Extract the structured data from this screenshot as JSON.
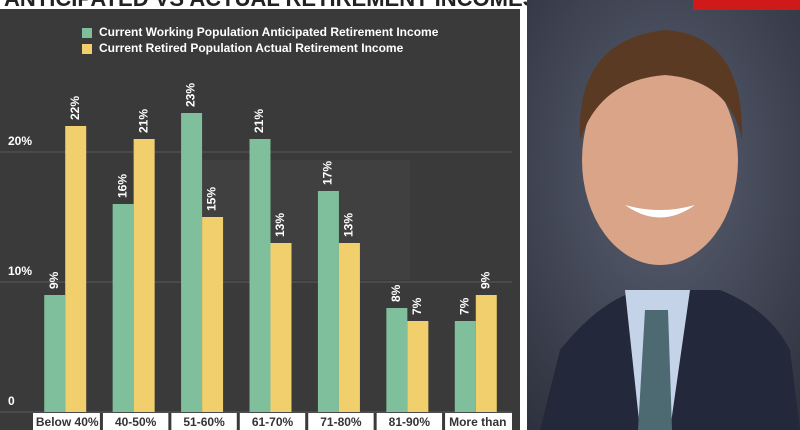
{
  "chart_data": {
    "type": "bar",
    "title": "ANTICIPATED VS ACTUAL RETIREMENT INCOMES",
    "categories": [
      "Below 40%",
      "40-50%",
      "51-60%",
      "61-70%",
      "71-80%",
      "81-90%",
      "More than"
    ],
    "series": [
      {
        "name": "Current Working Population Anticipated Retirement Income",
        "color": "#7fbf9b",
        "values": [
          9,
          16,
          23,
          21,
          17,
          8,
          7
        ],
        "value_labels": [
          "9%",
          "16%",
          "23%",
          "21%",
          "17%",
          "8%",
          "7%"
        ]
      },
      {
        "name": "Current Retired Population Actual Retirement Income",
        "color": "#f0cf6c",
        "values": [
          22,
          21,
          15,
          13,
          13,
          7,
          9
        ],
        "value_labels": [
          "22%",
          "21%",
          "15%",
          "13%",
          "13%",
          "7%",
          "9%"
        ]
      }
    ],
    "ylim": [
      0,
      30
    ],
    "yticks": [
      0,
      {
        "value": 10,
        "label": "10%"
      },
      {
        "value": 20,
        "label": "20%"
      }
    ],
    "grid": true,
    "legend": "top"
  }
}
